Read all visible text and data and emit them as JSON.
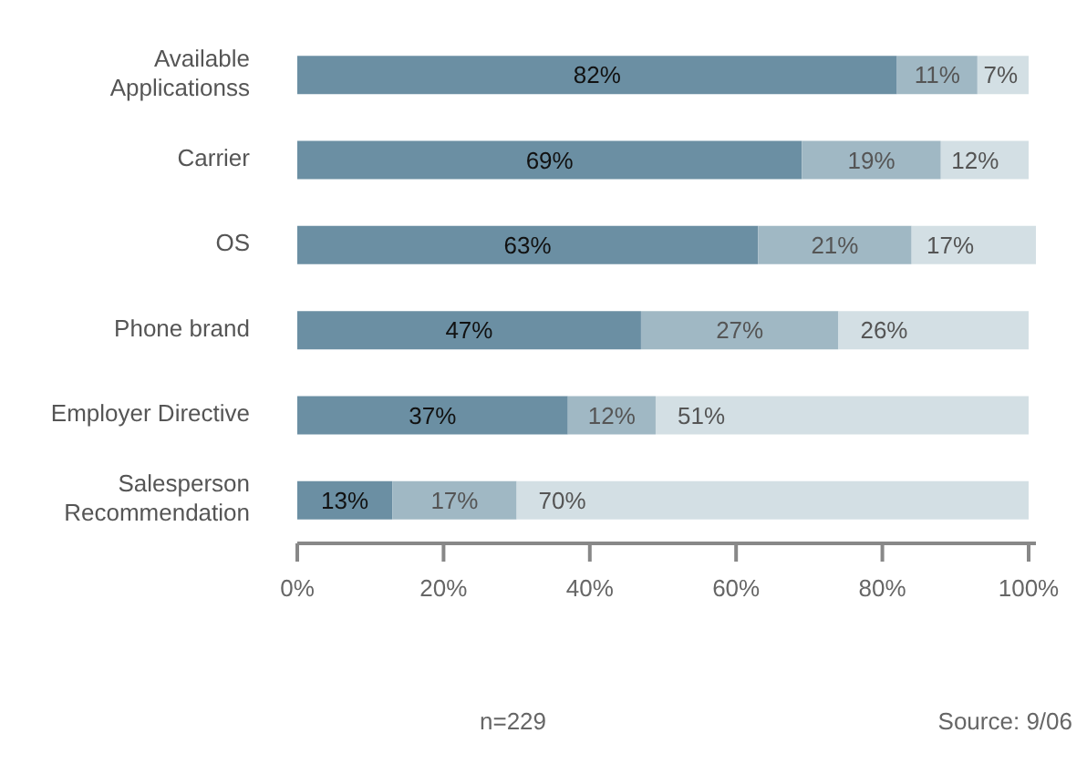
{
  "chart_data": {
    "type": "bar",
    "orientation": "horizontal",
    "stacked": true,
    "categories": [
      "Available Applicationss",
      "Carrier",
      "OS",
      "Phone brand",
      "Employer Directive",
      "Salesperson Recommendation"
    ],
    "series": [
      {
        "color": "#6b8fa3",
        "values": [
          82,
          69,
          63,
          47,
          37,
          13
        ],
        "value_labels": [
          "82%",
          "69%",
          "63%",
          "47%",
          "37%",
          "13%"
        ]
      },
      {
        "color": "#a0b8c4",
        "values": [
          11,
          19,
          21,
          27,
          12,
          17
        ],
        "value_labels": [
          "11%",
          "19%",
          "21%",
          "27%",
          "12%",
          "17%"
        ]
      },
      {
        "color": "#d3dfe4",
        "values": [
          7,
          12,
          17,
          26,
          51,
          70
        ],
        "value_labels": [
          "7%",
          "12%",
          "17%",
          "26%",
          "51%",
          "70%"
        ]
      }
    ],
    "xlim": [
      0,
      101
    ],
    "xticks": [
      {
        "value": 0,
        "label": "0%"
      },
      {
        "value": 20,
        "label": "20%"
      },
      {
        "value": 40,
        "label": "40%"
      },
      {
        "value": 60,
        "label": "60%"
      },
      {
        "value": 80,
        "label": "80%"
      },
      {
        "value": 100,
        "label": "100%"
      }
    ],
    "grid": false,
    "legend": false,
    "annotations": [
      "n=229",
      "Source: 9/06"
    ]
  }
}
